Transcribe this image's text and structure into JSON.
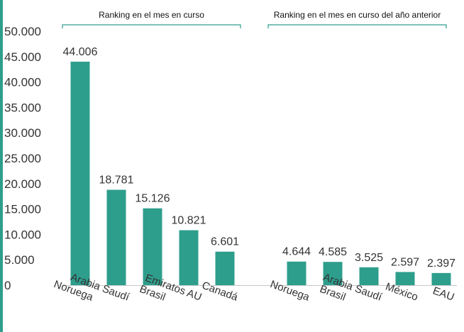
{
  "chart_data": {
    "type": "bar",
    "ylim": [
      0,
      50000
    ],
    "yticks": [
      "0",
      "5.000",
      "10.000",
      "15.000",
      "20.000",
      "25.000",
      "30.000",
      "35.000",
      "40.000",
      "45.000",
      "50.000"
    ],
    "grid": false,
    "bar_color": "#2e9e8c",
    "groups": [
      {
        "label": "Ranking en el mes en curso",
        "categories": [
          "Noruega",
          "Arabia Saudí",
          "Brasil",
          "Emiratos AU",
          "Canadá"
        ],
        "values": [
          44006,
          18781,
          15126,
          10821,
          6601
        ],
        "value_labels": [
          "44.006",
          "18.781",
          "15.126",
          "10.821",
          "6.601"
        ]
      },
      {
        "label": "Ranking en el mes en curso del año anterior",
        "categories": [
          "Noruega",
          "Brasil",
          "Arabia Saudí",
          "México",
          "EAU"
        ],
        "values": [
          4644,
          4585,
          3525,
          2597,
          2397
        ],
        "value_labels": [
          "4.644",
          "4.585",
          "3.525",
          "2.597",
          "2.397"
        ]
      }
    ]
  }
}
